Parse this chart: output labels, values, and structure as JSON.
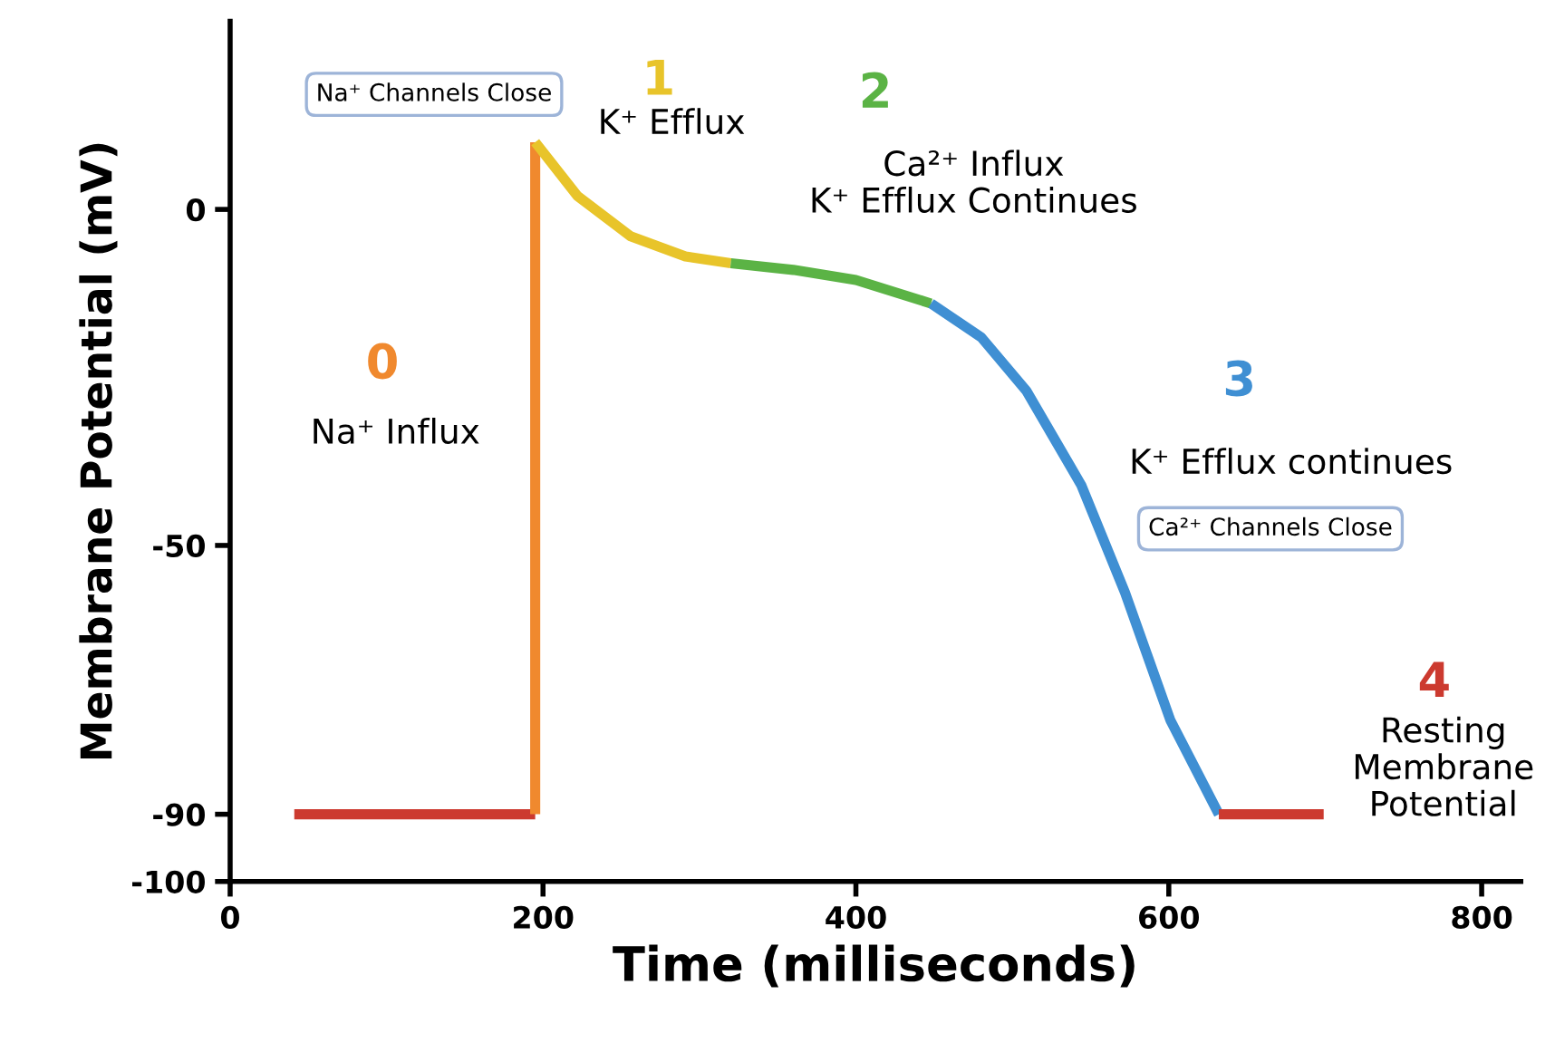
{
  "chart_data": {
    "type": "line",
    "xlabel": "Time (milliseconds)",
    "ylabel": "Membrane Potential (mV)",
    "xlim": [
      0,
      825
    ],
    "ylim": [
      -100,
      28
    ],
    "xticks": [
      0,
      200,
      400,
      600,
      800
    ],
    "yticks": [
      -100,
      -90,
      -50,
      0
    ],
    "grid": false,
    "legend": false,
    "line_style": "solid",
    "marker": "none",
    "series": [
      {
        "color": "#cc3a2f",
        "x": [
          41,
          195
        ],
        "values": [
          -90,
          -90
        ]
      },
      {
        "name": "0",
        "color": "#f0892e",
        "x": [
          195,
          195
        ],
        "values": [
          -90,
          10
        ]
      },
      {
        "name": "1",
        "color": "#e8c42a",
        "x": [
          195,
          222,
          256,
          291,
          320
        ],
        "values": [
          10,
          2,
          -4,
          -7,
          -8
        ]
      },
      {
        "name": "2",
        "color": "#5bb345",
        "x": [
          320,
          360,
          400,
          448
        ],
        "values": [
          -8,
          -9,
          -10.5,
          -14
        ]
      },
      {
        "name": "3",
        "color": "#3f8fd3",
        "x": [
          448,
          480,
          509,
          544,
          572,
          601,
          632
        ],
        "values": [
          -14,
          -19,
          -27,
          -41,
          -57,
          -76,
          -90
        ]
      },
      {
        "name": "4",
        "color": "#cc3a2f",
        "x": [
          632,
          699
        ],
        "values": [
          -90,
          -90
        ]
      }
    ],
    "annotations": [
      "Na⁺ Channels Close",
      "K⁺ Efflux",
      "Ca²⁺ Influx\nK⁺ Efflux Continues",
      "Na⁺ Influx",
      "K⁺ Efflux continues",
      "Ca²⁺ Channels Close",
      "Resting\nMembrane\nPotential"
    ]
  }
}
